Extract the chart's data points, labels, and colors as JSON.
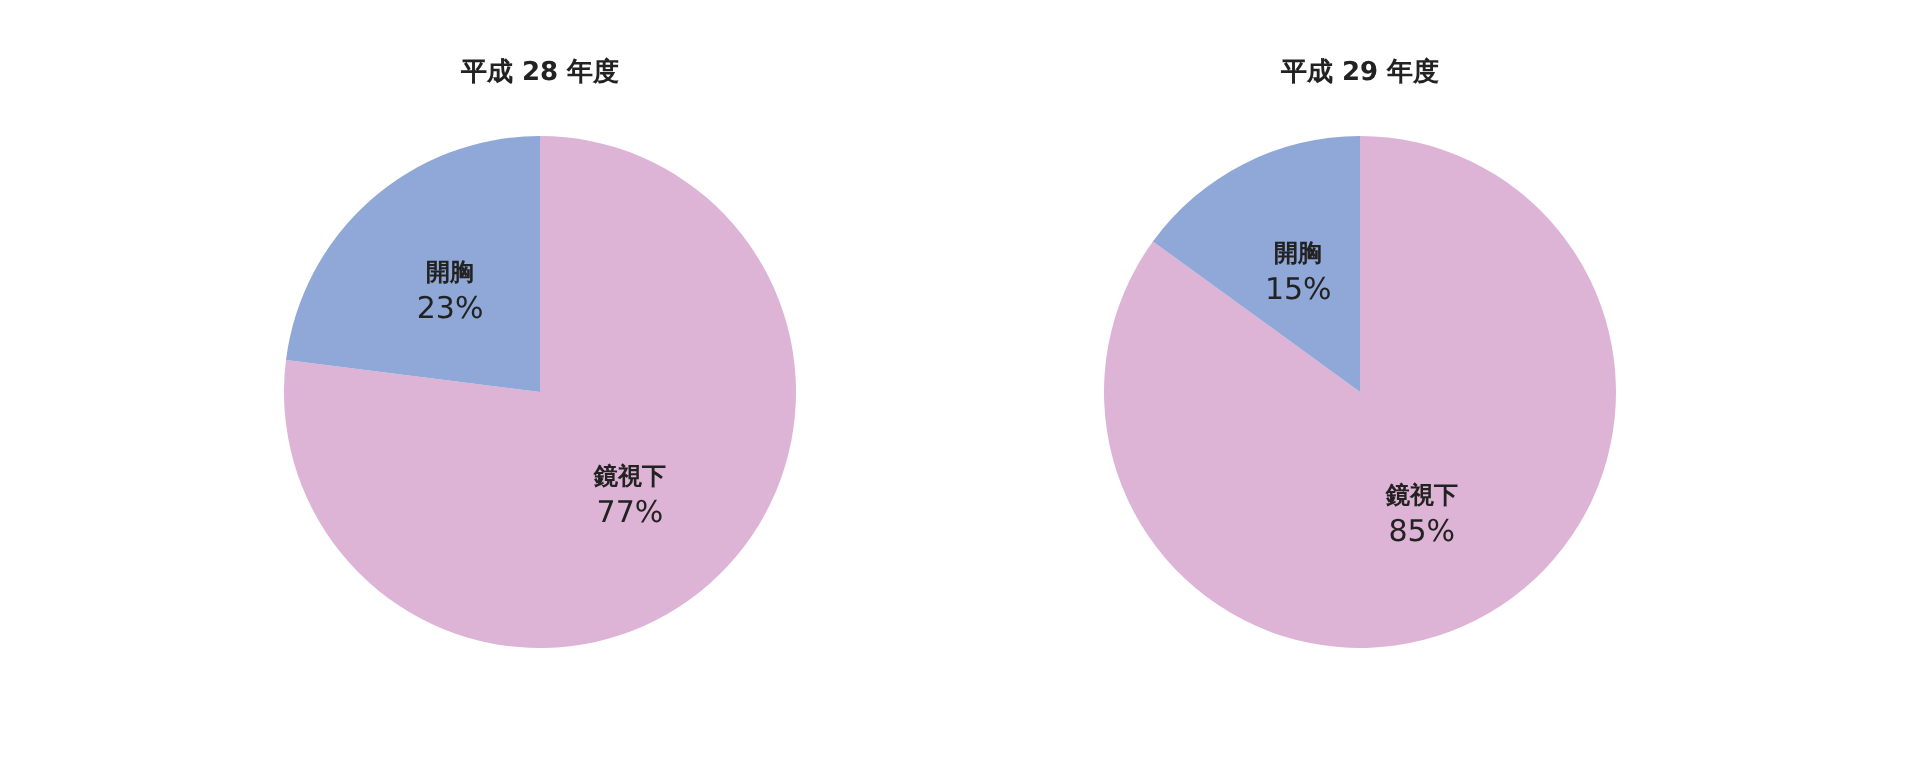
{
  "chart_data": [
    {
      "type": "pie",
      "title": "平成 28 年度",
      "categories": [
        "鏡視下",
        "開胸"
      ],
      "values": [
        77,
        23
      ],
      "value_labels": [
        "77%",
        "23%"
      ],
      "colors": [
        "#ddb4d5",
        "#8fa8d8"
      ],
      "legend": false
    },
    {
      "type": "pie",
      "title": "平成 29 年度",
      "categories": [
        "鏡視下",
        "開胸"
      ],
      "values": [
        85,
        15
      ],
      "value_labels": [
        "85%",
        "15%"
      ],
      "colors": [
        "#ddb4d5",
        "#8fa8d8"
      ],
      "legend": false
    }
  ]
}
